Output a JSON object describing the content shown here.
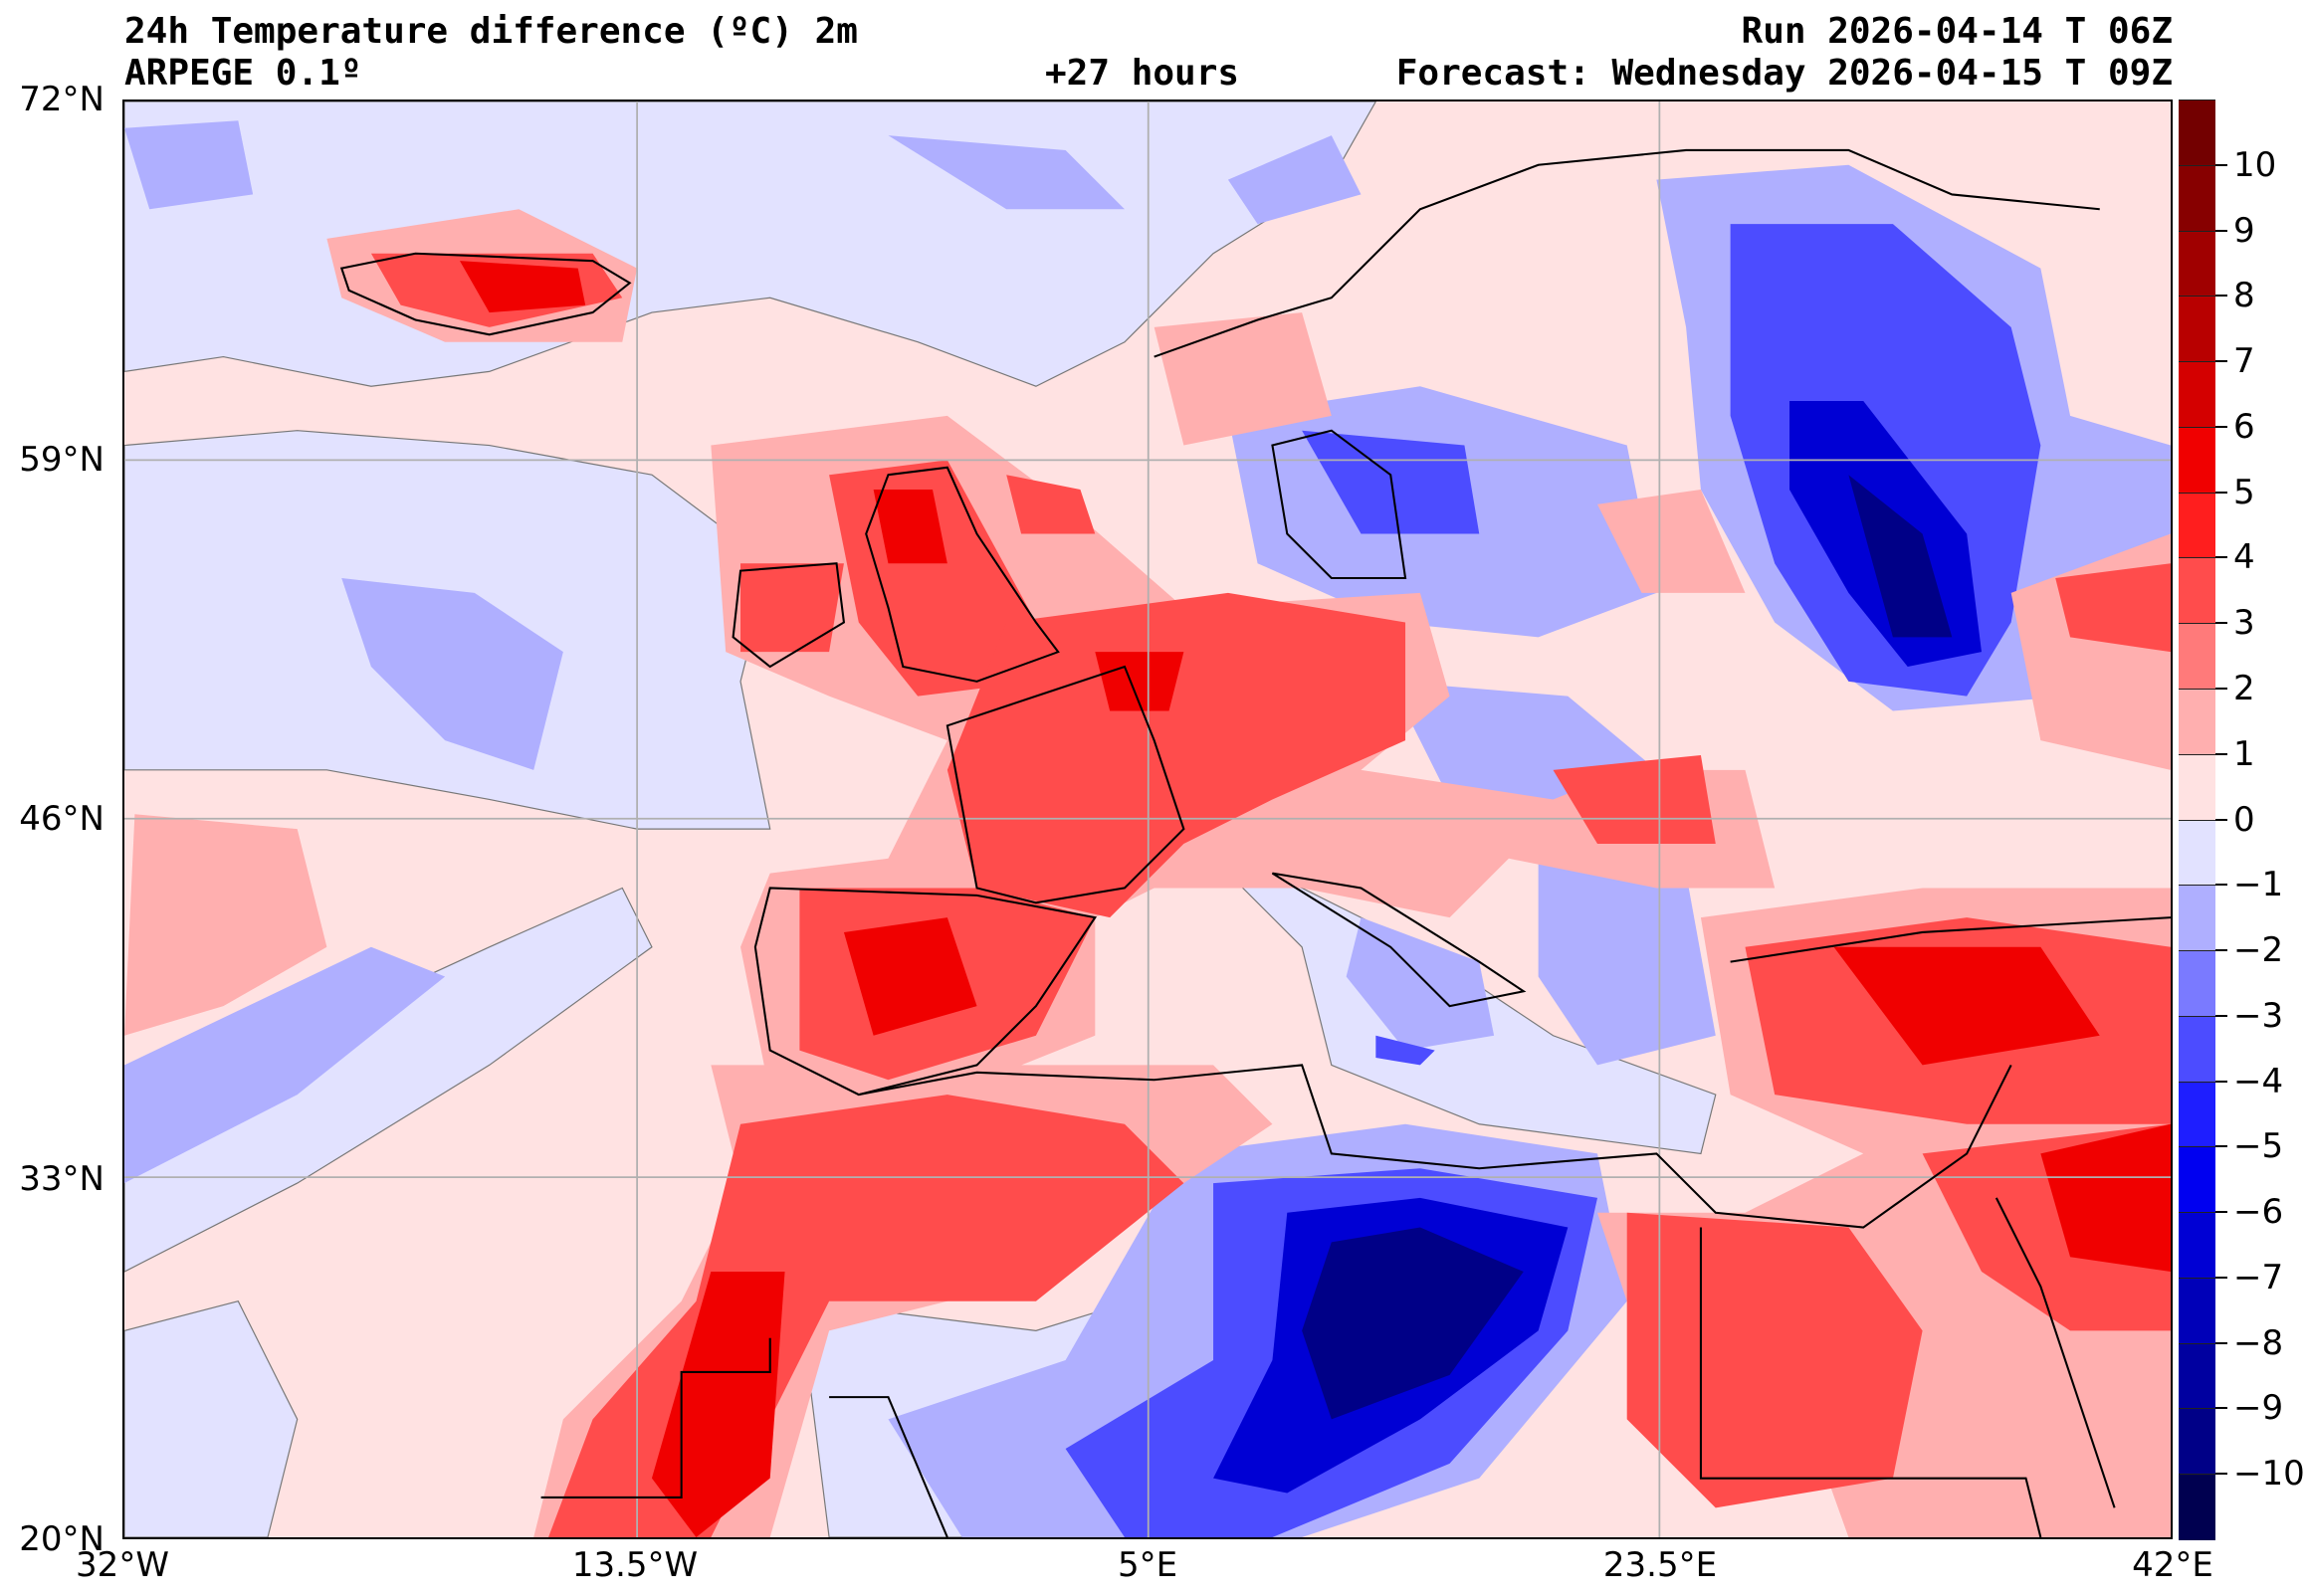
{
  "header": {
    "title": "24h Temperature difference (ºC) 2m",
    "model": "ARPEGE 0.1º",
    "lead": "+27 hours",
    "run": "Run 2026-04-14 T 06Z",
    "forecast": "Forecast: Wednesday 2026-04-15 T 09Z"
  },
  "map": {
    "lon_range": [
      -32,
      42
    ],
    "lat_range": [
      20,
      72
    ],
    "lat_labels": [
      {
        "value": 72,
        "label": "72°N"
      },
      {
        "value": 59,
        "label": "59°N"
      },
      {
        "value": 46,
        "label": "46°N"
      },
      {
        "value": 33,
        "label": "33°N"
      },
      {
        "value": 20,
        "label": "20°N"
      }
    ],
    "lon_labels": [
      {
        "value": -32,
        "label": "32°W"
      },
      {
        "value": -13.5,
        "label": "13.5°W"
      },
      {
        "value": 5,
        "label": "5°E"
      },
      {
        "value": 23.5,
        "label": "23.5°E"
      },
      {
        "value": 42,
        "label": "42°E"
      }
    ]
  },
  "colorbar": {
    "range": [
      -11,
      11
    ],
    "ticks": [
      "10",
      "9",
      "8",
      "7",
      "6",
      "5",
      "4",
      "3",
      "2",
      "1",
      "0",
      "−1",
      "−2",
      "−3",
      "−4",
      "−5",
      "−6",
      "−7",
      "−8",
      "−9",
      "−10"
    ],
    "tick_values": [
      10,
      9,
      8,
      7,
      6,
      5,
      4,
      3,
      2,
      1,
      0,
      -1,
      -2,
      -3,
      -4,
      -5,
      -6,
      -7,
      -8,
      -9,
      -10
    ],
    "colors": [
      "#730000",
      "#870000",
      "#a00000",
      "#b80000",
      "#d40000",
      "#f00000",
      "#ff1e1e",
      "#ff4c4c",
      "#ff7a7a",
      "#ffafaf",
      "#ffe2e2",
      "#e2e2ff",
      "#afafff",
      "#7a7aff",
      "#4c4cff",
      "#1e1eff",
      "#0000f0",
      "#0000d4",
      "#0000b8",
      "#0000a0",
      "#000087",
      "#000050"
    ]
  }
}
